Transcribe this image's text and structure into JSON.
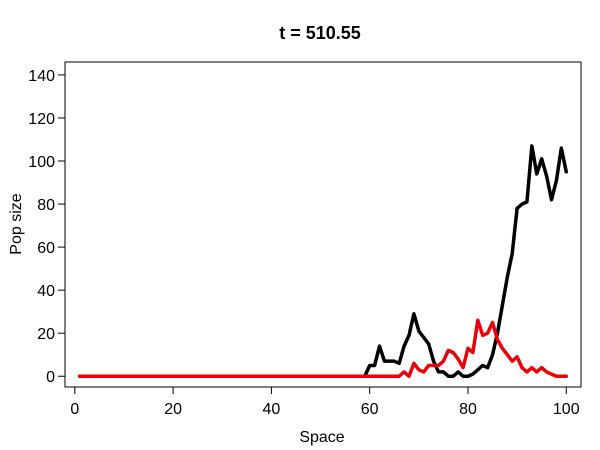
{
  "chart_data": {
    "type": "line",
    "title": "t = 510.55",
    "xlabel": "Space",
    "ylabel": "Pop size",
    "xlim": [
      -2,
      103
    ],
    "ylim": [
      -5,
      146
    ],
    "xticks": [
      0,
      20,
      40,
      60,
      80,
      100
    ],
    "yticks": [
      0,
      20,
      40,
      60,
      80,
      100,
      120,
      140
    ],
    "grid": false,
    "series": [
      {
        "color": "#000000",
        "x": [
          1,
          2,
          3,
          4,
          5,
          6,
          7,
          8,
          9,
          10,
          11,
          12,
          13,
          14,
          15,
          16,
          17,
          18,
          19,
          20,
          21,
          22,
          23,
          24,
          25,
          26,
          27,
          28,
          29,
          30,
          31,
          32,
          33,
          34,
          35,
          36,
          37,
          38,
          39,
          40,
          41,
          42,
          43,
          44,
          45,
          46,
          47,
          48,
          49,
          50,
          51,
          52,
          53,
          54,
          55,
          56,
          57,
          58,
          59,
          60,
          61,
          62,
          63,
          64,
          65,
          66,
          67,
          68,
          69,
          70,
          71,
          72,
          73,
          74,
          75,
          76,
          77,
          78,
          79,
          80,
          81,
          82,
          83,
          84,
          85,
          86,
          87,
          88,
          89,
          90,
          91,
          92,
          93,
          94,
          95,
          96,
          97,
          98,
          99,
          100
        ],
        "values": [
          0,
          0,
          0,
          0,
          0,
          0,
          0,
          0,
          0,
          0,
          0,
          0,
          0,
          0,
          0,
          0,
          0,
          0,
          0,
          0,
          0,
          0,
          0,
          0,
          0,
          0,
          0,
          0,
          0,
          0,
          0,
          0,
          0,
          0,
          0,
          0,
          0,
          0,
          0,
          0,
          0,
          0,
          0,
          0,
          0,
          0,
          0,
          0,
          0,
          0,
          0,
          0,
          0,
          0,
          0,
          0,
          0,
          0,
          0,
          5,
          5,
          14,
          7,
          7,
          7,
          6,
          14,
          19,
          29,
          21,
          18,
          15,
          7,
          2,
          2,
          0,
          0,
          2,
          0,
          0,
          1,
          3,
          5,
          4,
          10,
          20,
          33,
          46,
          57,
          78,
          80,
          81,
          107,
          94,
          101,
          93,
          82,
          91,
          106,
          95
        ]
      },
      {
        "color": "#e8000b",
        "x": [
          1,
          2,
          3,
          4,
          5,
          6,
          7,
          8,
          9,
          10,
          11,
          12,
          13,
          14,
          15,
          16,
          17,
          18,
          19,
          20,
          21,
          22,
          23,
          24,
          25,
          26,
          27,
          28,
          29,
          30,
          31,
          32,
          33,
          34,
          35,
          36,
          37,
          38,
          39,
          40,
          41,
          42,
          43,
          44,
          45,
          46,
          47,
          48,
          49,
          50,
          51,
          52,
          53,
          54,
          55,
          56,
          57,
          58,
          59,
          60,
          61,
          62,
          63,
          64,
          65,
          66,
          67,
          68,
          69,
          70,
          71,
          72,
          73,
          74,
          75,
          76,
          77,
          78,
          79,
          80,
          81,
          82,
          83,
          84,
          85,
          86,
          87,
          88,
          89,
          90,
          91,
          92,
          93,
          94,
          95,
          96,
          97,
          98,
          99,
          100
        ],
        "values": [
          0,
          0,
          0,
          0,
          0,
          0,
          0,
          0,
          0,
          0,
          0,
          0,
          0,
          0,
          0,
          0,
          0,
          0,
          0,
          0,
          0,
          0,
          0,
          0,
          0,
          0,
          0,
          0,
          0,
          0,
          0,
          0,
          0,
          0,
          0,
          0,
          0,
          0,
          0,
          0,
          0,
          0,
          0,
          0,
          0,
          0,
          0,
          0,
          0,
          0,
          0,
          0,
          0,
          0,
          0,
          0,
          0,
          0,
          0,
          0,
          0,
          0,
          0,
          0,
          0,
          0,
          2,
          0,
          6,
          3,
          2,
          5,
          5,
          5,
          7,
          12,
          11,
          8,
          4,
          13,
          11,
          26,
          19,
          20,
          25,
          17,
          13,
          10,
          7,
          9,
          4,
          2,
          4,
          2,
          4,
          2,
          1,
          0,
          0,
          0
        ]
      }
    ]
  }
}
